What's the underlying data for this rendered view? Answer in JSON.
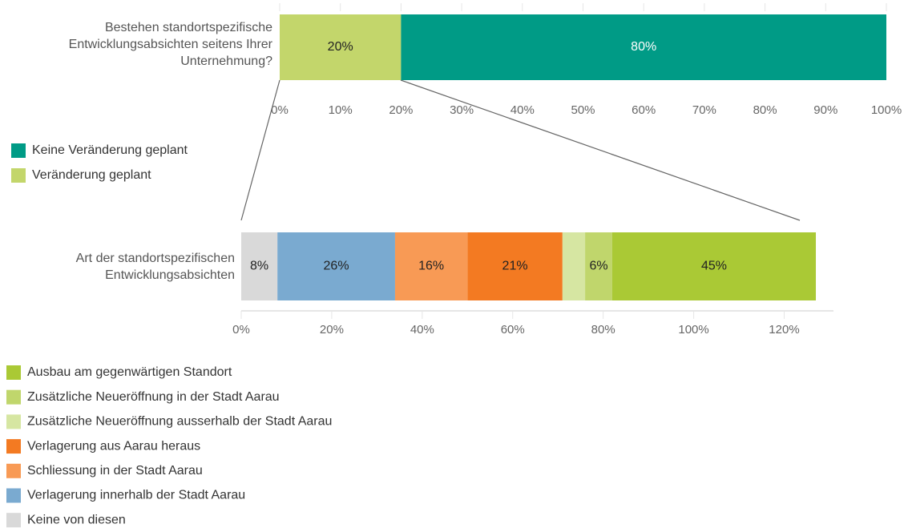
{
  "chart_data": [
    {
      "type": "stacked-bar",
      "orientation": "horizontal",
      "categories": [
        "Bestehen standortspezifische Entwicklungsabsichten seitens Ihrer Unternehmung?"
      ],
      "series": [
        {
          "name": "Veränderung geplant",
          "color": "#c3d66b",
          "label_color": "#222222",
          "values": [
            20
          ],
          "value_labels": [
            "20%"
          ]
        },
        {
          "name": "Keine Veränderung geplant",
          "color": "#009b86",
          "label_color": "#ffffff",
          "values": [
            80
          ],
          "value_labels": [
            "80%"
          ]
        }
      ],
      "xlim": [
        0,
        100
      ],
      "xticks": [
        {
          "value": 0,
          "label": "0%"
        },
        {
          "value": 10,
          "label": "10%"
        },
        {
          "value": 20,
          "label": "20%"
        },
        {
          "value": 30,
          "label": "30%"
        },
        {
          "value": 40,
          "label": "40%"
        },
        {
          "value": 50,
          "label": "50%"
        },
        {
          "value": 60,
          "label": "60%"
        },
        {
          "value": 70,
          "label": "70%"
        },
        {
          "value": 80,
          "label": "80%"
        },
        {
          "value": 90,
          "label": "90%"
        },
        {
          "value": 100,
          "label": "100%"
        }
      ]
    },
    {
      "type": "stacked-bar",
      "orientation": "horizontal",
      "categories": [
        "Art der standortspezifischen Entwicklungsabsichten"
      ],
      "series": [
        {
          "name": "Keine von diesen",
          "color": "#d9d9d9",
          "label_color": "#222222",
          "values": [
            8
          ],
          "value_labels": [
            "8%"
          ]
        },
        {
          "name": "Verlagerung innerhalb der Stadt Aarau",
          "color": "#7aaad0",
          "label_color": "#222222",
          "values": [
            26
          ],
          "value_labels": [
            "26%"
          ]
        },
        {
          "name": "Schliessung in der Stadt Aarau",
          "color": "#f89a55",
          "label_color": "#222222",
          "values": [
            16
          ],
          "value_labels": [
            "16%"
          ]
        },
        {
          "name": "Verlagerung aus Aarau heraus",
          "color": "#f37a22",
          "label_color": "#222222",
          "values": [
            21
          ],
          "value_labels": [
            "21%"
          ]
        },
        {
          "name": "Zusätzliche Neueröffnung ausserhalb der Stadt Aarau",
          "color": "#d6e6a2",
          "label_color": "#222222",
          "values": [
            5
          ]
        },
        {
          "name": "Zusätzliche Neueröffnung in der Stadt Aarau",
          "color": "#c0d66c",
          "label_color": "#222222",
          "values": [
            6
          ],
          "value_labels": [
            "6%"
          ]
        },
        {
          "name": "Ausbau am gegenwärtigen Standort",
          "color": "#aac935",
          "label_color": "#222222",
          "values": [
            45
          ],
          "value_labels": [
            "45%"
          ]
        }
      ],
      "xlim": [
        0,
        130
      ],
      "xticks": [
        {
          "value": 0,
          "label": "0%"
        },
        {
          "value": 20,
          "label": "20%"
        },
        {
          "value": 40,
          "label": "40%"
        },
        {
          "value": 60,
          "label": "60%"
        },
        {
          "value": 80,
          "label": "80%"
        },
        {
          "value": 100,
          "label": "100%"
        },
        {
          "value": 120,
          "label": "120%"
        }
      ]
    }
  ]
}
